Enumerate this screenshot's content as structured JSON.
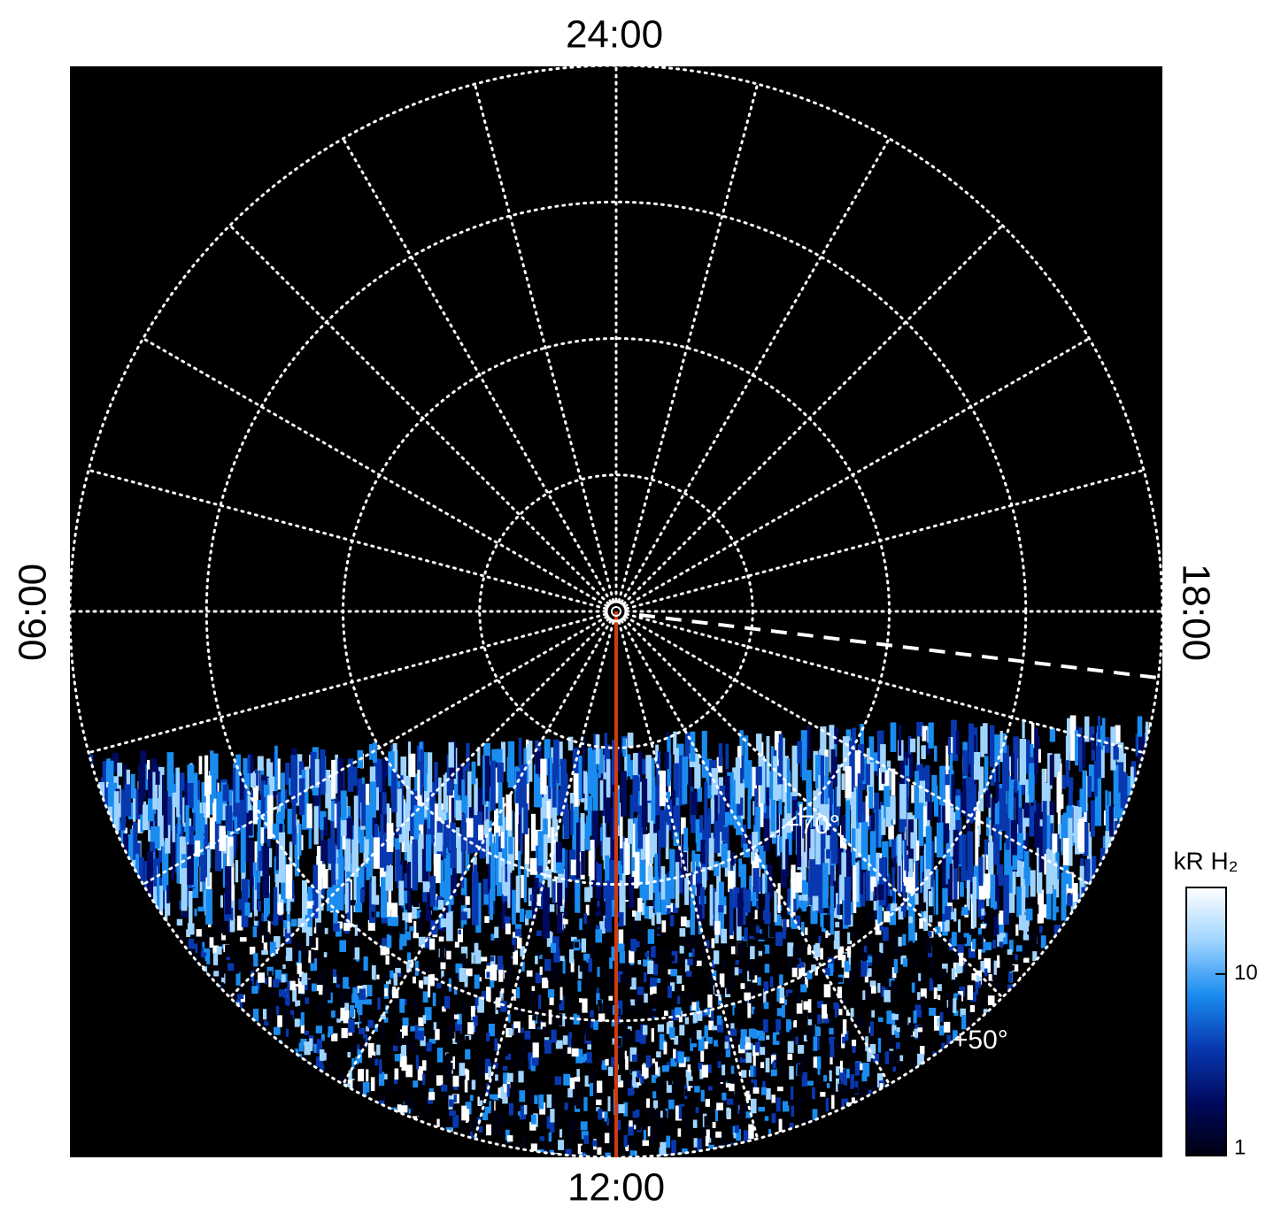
{
  "chart_data": {
    "type": "polar-image",
    "local_time_labels": {
      "top": "24:00",
      "left": "06:00",
      "bottom": "12:00",
      "right": "18:00"
    },
    "rlim": [
      90,
      50
    ],
    "rticks": [
      {
        "value": 70,
        "label": "+70°"
      },
      {
        "value": 50,
        "label": "+50°"
      }
    ],
    "minor_rticks": [
      80,
      60
    ],
    "colorbar": {
      "title": "kR H₂",
      "log": true,
      "lim": [
        1,
        30
      ],
      "ticks": [
        1,
        10
      ],
      "colors": [
        "#000010",
        "#000a60",
        "#0838b0",
        "#1a8cf0",
        "#9fd4ff",
        "#ffffff"
      ]
    },
    "meridian_color": "#d03a10"
  }
}
